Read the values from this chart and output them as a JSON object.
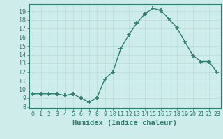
{
  "x": [
    0,
    1,
    2,
    3,
    4,
    5,
    6,
    7,
    8,
    9,
    10,
    11,
    12,
    13,
    14,
    15,
    16,
    17,
    18,
    19,
    20,
    21,
    22,
    23
  ],
  "y": [
    9.5,
    9.5,
    9.5,
    9.5,
    9.3,
    9.5,
    9.0,
    8.5,
    9.0,
    11.2,
    12.0,
    14.7,
    16.3,
    17.6,
    18.7,
    19.3,
    19.1,
    18.1,
    17.1,
    15.5,
    13.9,
    13.2,
    13.2,
    12.0
  ],
  "line_color": "#2e7d6e",
  "marker": "+",
  "marker_size": 4,
  "marker_lw": 1.2,
  "line_width": 1.0,
  "bg_color": "#cdecea",
  "grid_major_color": "#b8dbd9",
  "grid_minor_color": "#cde8e6",
  "xlabel": "Humidex (Indice chaleur)",
  "xlim": [
    -0.5,
    23.5
  ],
  "ylim": [
    7.8,
    19.8
  ],
  "yticks": [
    8,
    9,
    10,
    11,
    12,
    13,
    14,
    15,
    16,
    17,
    18,
    19
  ],
  "xticks": [
    0,
    1,
    2,
    3,
    4,
    5,
    6,
    7,
    8,
    9,
    10,
    11,
    12,
    13,
    14,
    15,
    16,
    17,
    18,
    19,
    20,
    21,
    22,
    23
  ],
  "tick_label_fontsize": 6.0,
  "xlabel_fontsize": 7.5,
  "spine_color": "#2e7d6e"
}
